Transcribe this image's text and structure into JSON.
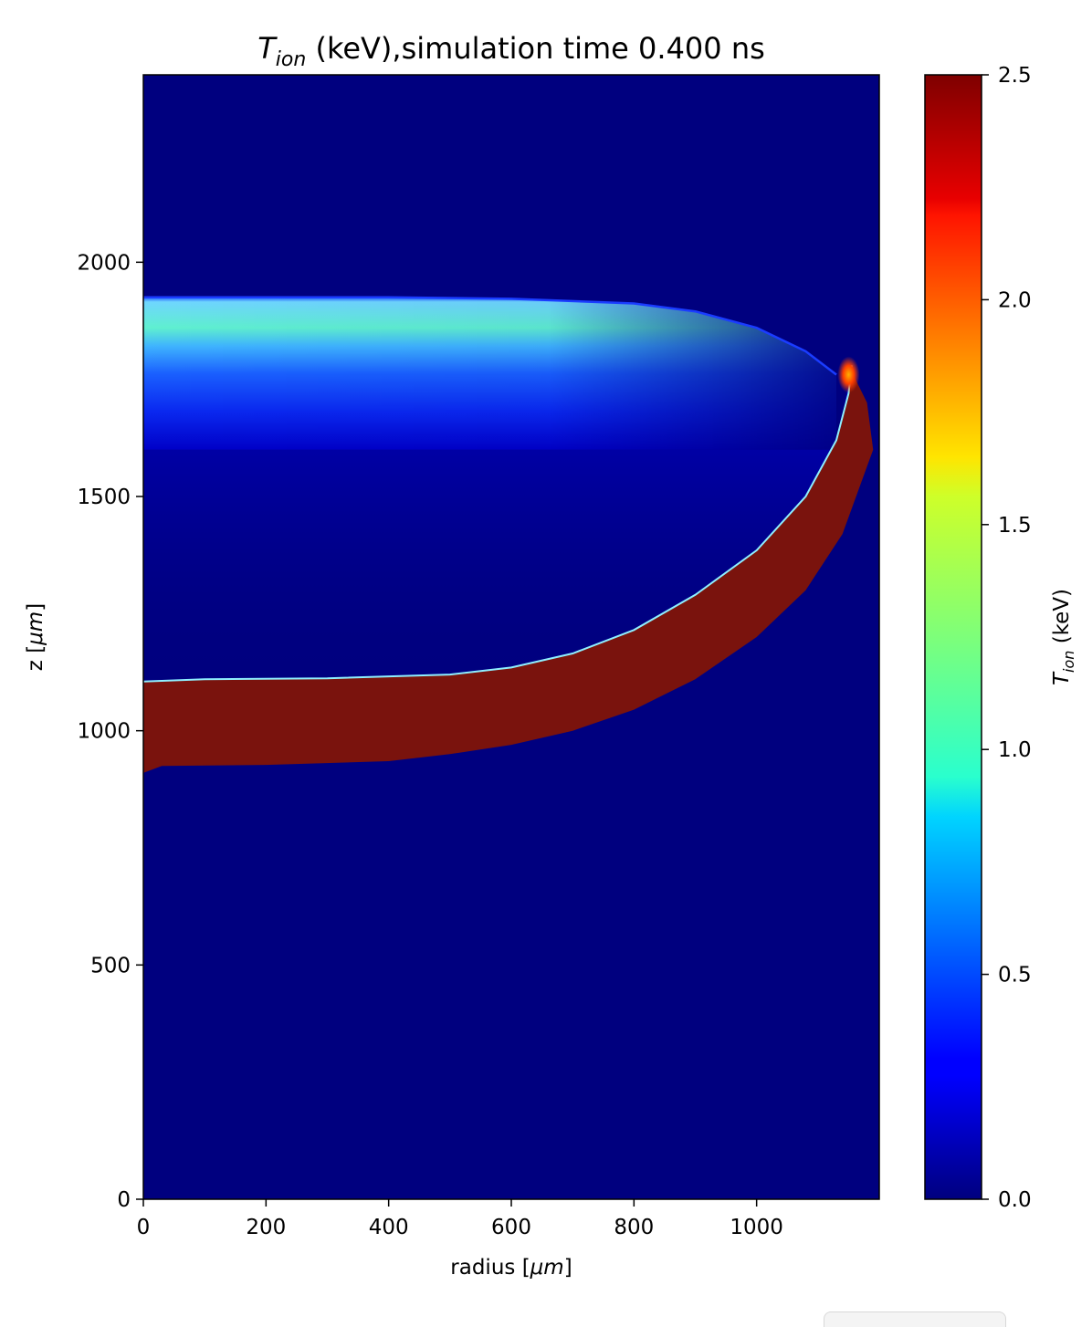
{
  "chart_data": {
    "type": "heatmap",
    "title": {
      "symbol": "T",
      "subscript": "ion",
      "rest": " (keV),simulation time 0.400 ns"
    },
    "xlabel": {
      "text": "radius [",
      "math": "μm",
      "close": "]"
    },
    "ylabel": {
      "text": "z [",
      "math": "μm",
      "close": "]"
    },
    "xlim": [
      0,
      1200
    ],
    "ylim": [
      0,
      2400
    ],
    "xticks": [
      0,
      200,
      400,
      600,
      800,
      1000
    ],
    "xtick_labels": [
      "0",
      "200",
      "400",
      "600",
      "800",
      "1000"
    ],
    "yticks": [
      0,
      500,
      1000,
      1500,
      2000
    ],
    "ytick_labels": [
      "0",
      "500",
      "1000",
      "1500",
      "2000"
    ],
    "colormap": "jet",
    "colorbar": {
      "label": {
        "symbol": "T",
        "subscript": "ion",
        "rest": " (keV)"
      },
      "range": [
        0.0,
        2.5
      ],
      "ticks": [
        0.0,
        0.5,
        1.0,
        1.5,
        2.0,
        2.5
      ],
      "tick_labels": [
        "0.0",
        "0.5",
        "1.0",
        "1.5",
        "2.0",
        "2.5"
      ]
    },
    "background_value": 0.0,
    "hot_shell": {
      "value": 2.5,
      "inner_boundary": [
        [
          0,
          1105
        ],
        [
          100,
          1110
        ],
        [
          300,
          1112
        ],
        [
          500,
          1120
        ],
        [
          600,
          1135
        ],
        [
          700,
          1165
        ],
        [
          800,
          1215
        ],
        [
          900,
          1290
        ],
        [
          1000,
          1385
        ],
        [
          1080,
          1500
        ],
        [
          1130,
          1620
        ],
        [
          1150,
          1720
        ],
        [
          1155,
          1780
        ]
      ],
      "outer_boundary": [
        [
          0,
          910
        ],
        [
          30,
          925
        ],
        [
          200,
          927
        ],
        [
          400,
          935
        ],
        [
          500,
          950
        ],
        [
          600,
          970
        ],
        [
          700,
          1000
        ],
        [
          800,
          1045
        ],
        [
          900,
          1110
        ],
        [
          1000,
          1200
        ],
        [
          1080,
          1300
        ],
        [
          1140,
          1420
        ],
        [
          1190,
          1600
        ],
        [
          1180,
          1700
        ],
        [
          1150,
          1780
        ]
      ]
    },
    "warm_cap": {
      "z_top": 1925,
      "z_bottom": 1600,
      "peak_value": 0.95,
      "peak_z": 1840,
      "edge_profile": [
        [
          0,
          1925
        ],
        [
          200,
          1925
        ],
        [
          400,
          1925
        ],
        [
          600,
          1922
        ],
        [
          800,
          1912
        ],
        [
          900,
          1895
        ],
        [
          1000,
          1860
        ],
        [
          1080,
          1810
        ],
        [
          1130,
          1760
        ]
      ]
    },
    "hot_spot": {
      "x": 1150,
      "z": 1760,
      "value": 1.8
    }
  }
}
